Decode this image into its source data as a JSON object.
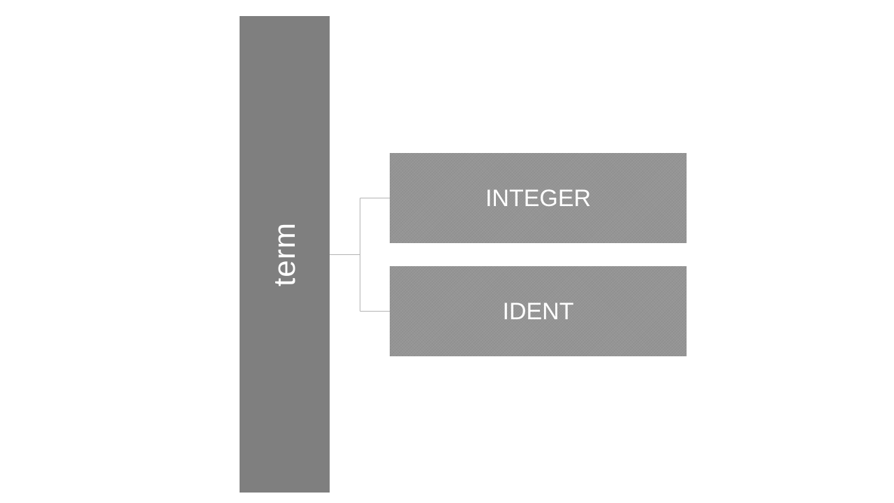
{
  "diagram": {
    "root": {
      "label": "term"
    },
    "children": [
      {
        "label": "INTEGER"
      },
      {
        "label": "IDENT"
      }
    ],
    "colors": {
      "root_fill": "#7f7f7f",
      "child_fill": "#959595",
      "connector": "#b3b3b3",
      "text": "#ffffff",
      "background": "#ffffff"
    }
  }
}
